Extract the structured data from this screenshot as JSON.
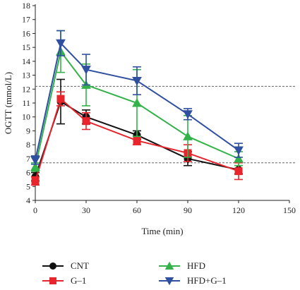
{
  "chart_data": {
    "type": "line",
    "xlabel": "Time (min)",
    "ylabel": "OGTT (mmol/L)",
    "xlim": [
      0,
      150
    ],
    "ylim": [
      4,
      18
    ],
    "xticks": [
      0,
      30,
      60,
      90,
      120,
      150
    ],
    "yticks": [
      4,
      5,
      6,
      7,
      8,
      9,
      10,
      11,
      12,
      13,
      14,
      15,
      16,
      17,
      18
    ],
    "x": [
      0,
      15,
      30,
      60,
      90,
      120
    ],
    "reference_lines": [
      12.2,
      6.7
    ],
    "legend_position": "bottom",
    "series": [
      {
        "name": "CNT",
        "color": "#111111",
        "marker": "circle",
        "values": [
          5.7,
          11.1,
          10.0,
          8.7,
          7.0,
          6.2
        ],
        "errors": [
          0.3,
          1.6,
          0.5,
          0.3,
          0.5,
          0.3
        ]
      },
      {
        "name": "G–1",
        "color": "#e8242c",
        "marker": "square",
        "values": [
          5.4,
          11.3,
          9.7,
          8.3,
          7.4,
          6.1
        ],
        "errors": [
          0.3,
          0.5,
          0.6,
          0.3,
          0.6,
          0.6
        ]
      },
      {
        "name": "HFD",
        "color": "#34b24a",
        "marker": "triangle-up",
        "values": [
          6.4,
          14.7,
          12.3,
          11.0,
          8.6,
          7.0
        ],
        "errors": [
          0.3,
          1.5,
          1.5,
          2.4,
          1.5,
          0.5
        ]
      },
      {
        "name": "HFD+G–1",
        "color": "#2f4fa1",
        "marker": "triangle-down",
        "values": [
          6.9,
          15.3,
          13.4,
          12.6,
          10.2,
          7.6
        ],
        "errors": [
          0.3,
          0.9,
          1.1,
          1.0,
          0.4,
          0.5
        ]
      }
    ]
  }
}
